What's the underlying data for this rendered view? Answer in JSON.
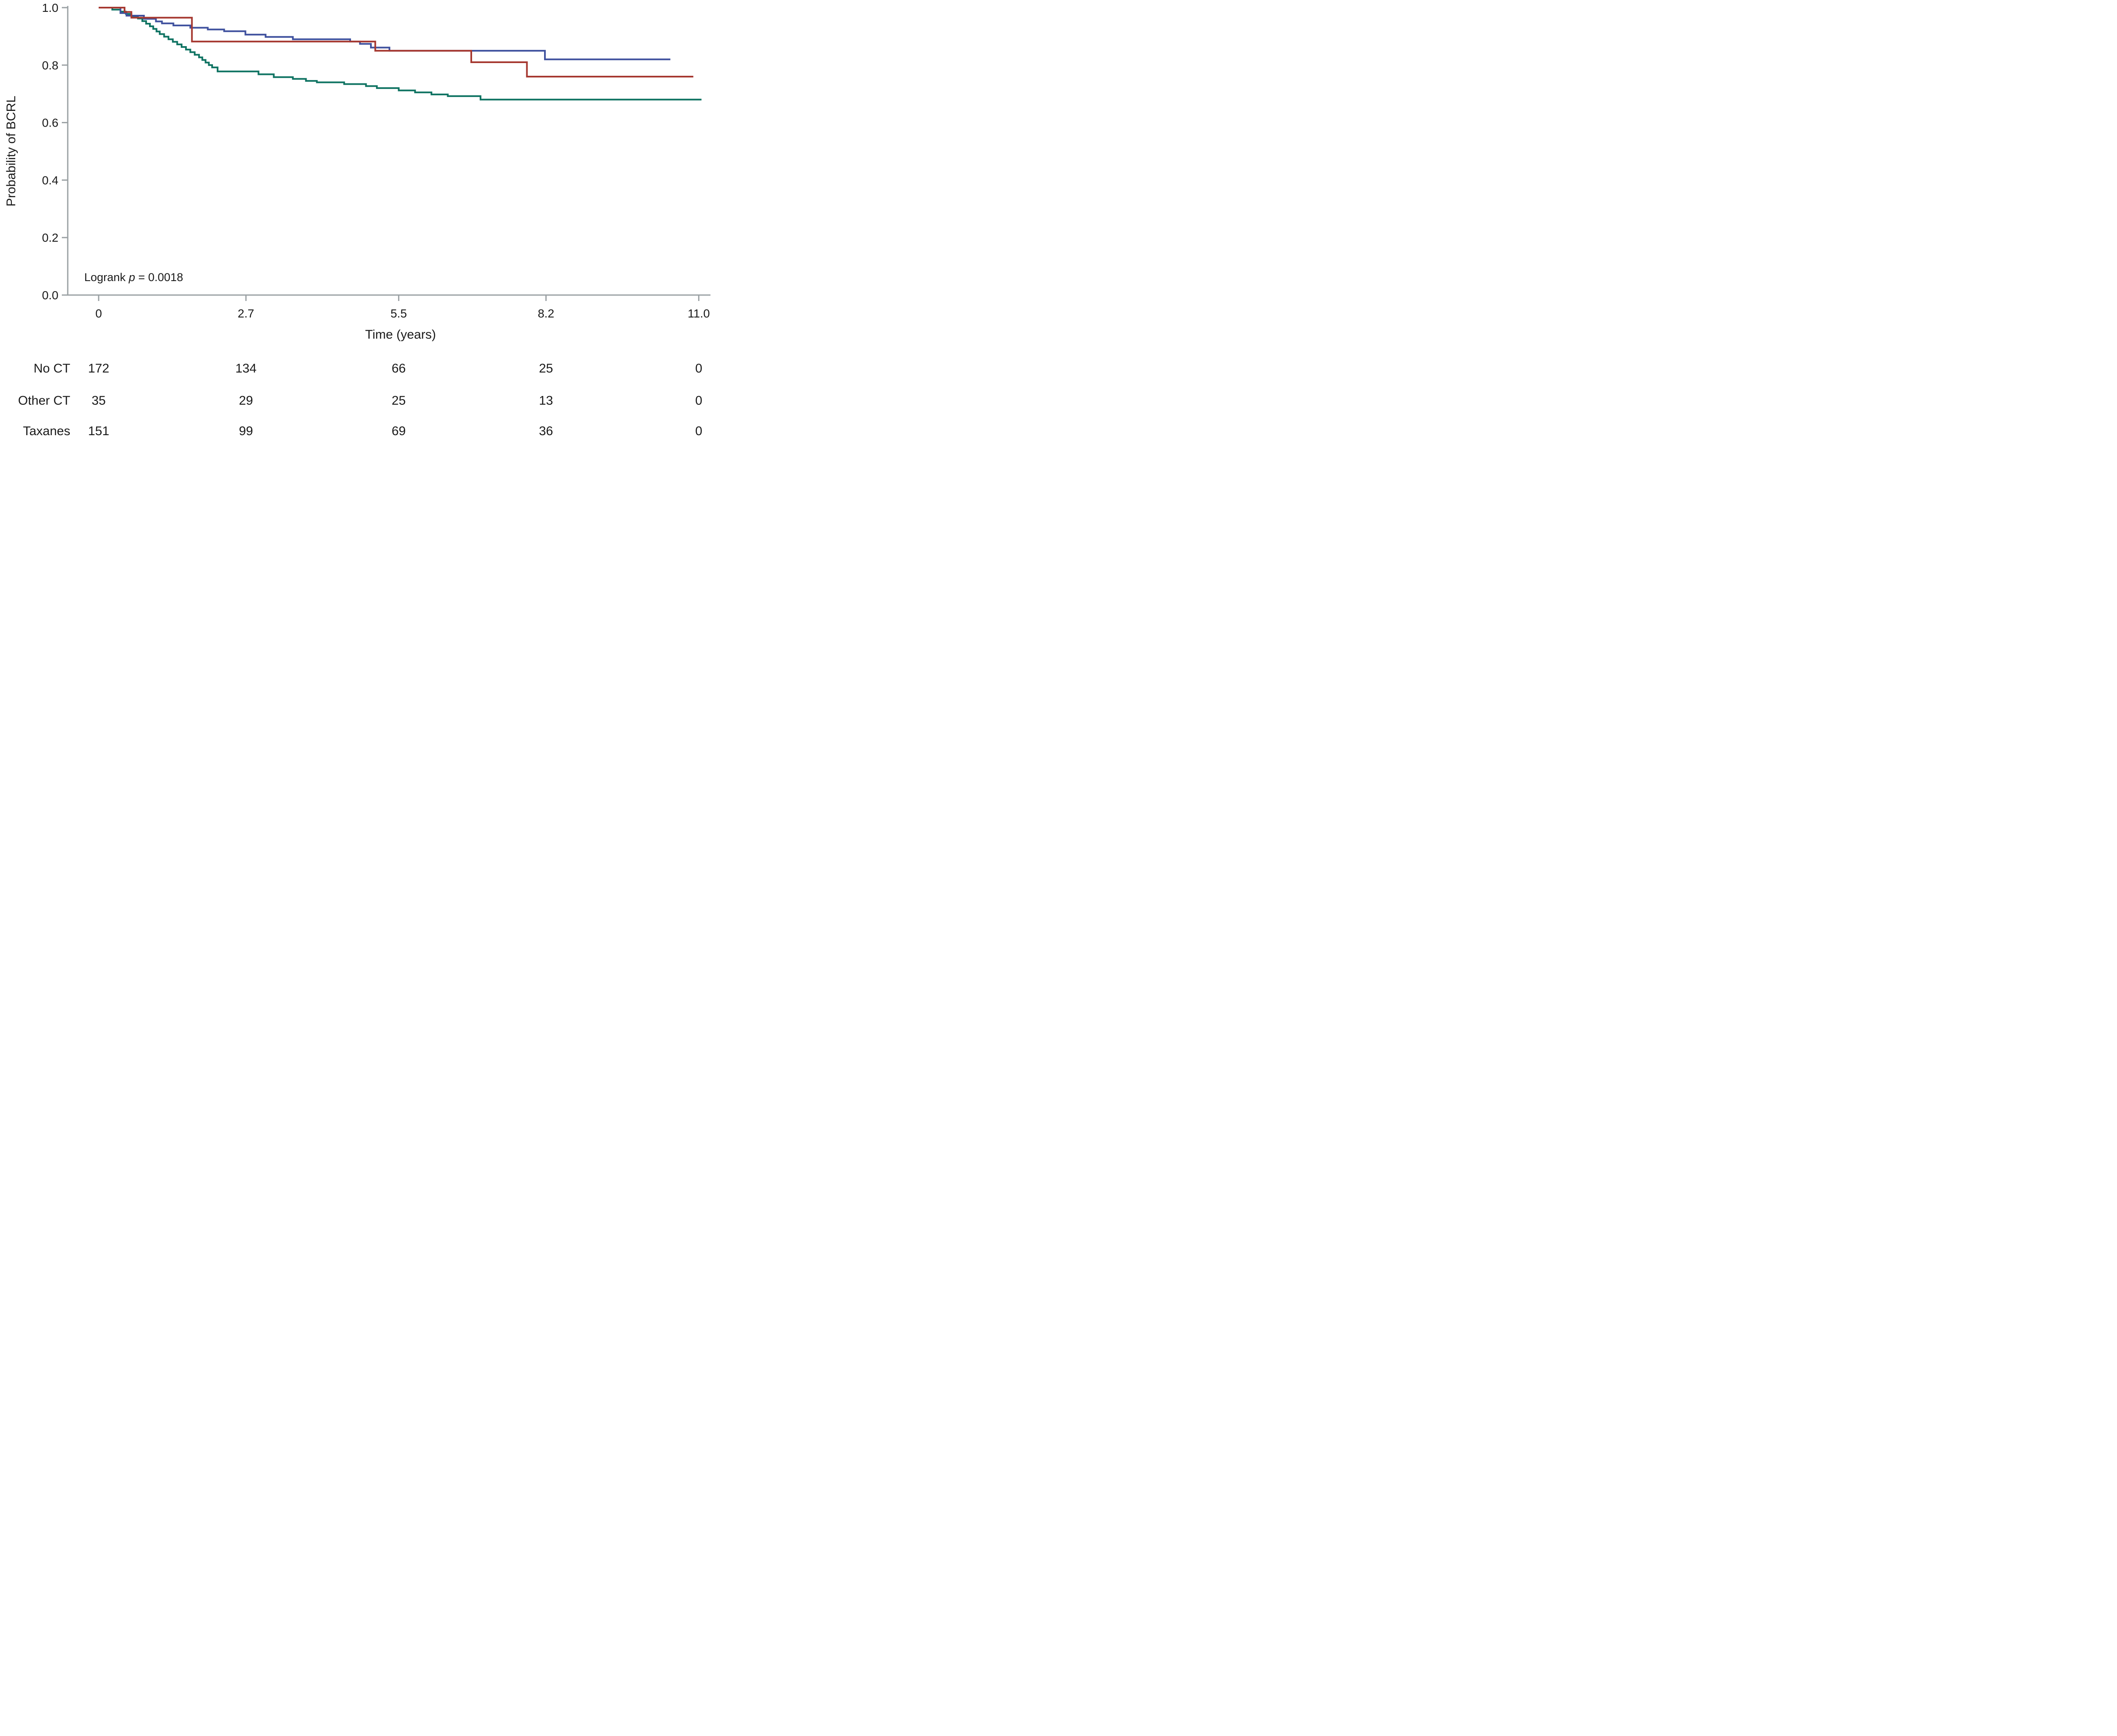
{
  "figure": {
    "ylabel": "Probability of BCRL",
    "xlabel": "Time (years)",
    "annotation": {
      "prefix": "Logrank ",
      "var": "p",
      "suffix": " = 0.0018"
    }
  },
  "colors": {
    "background": "#ffffff",
    "axis": "#9aa0a3",
    "text": "#1a1a1a",
    "no_ct": "#3f519e",
    "other_ct": "#a63931",
    "taxanes": "#0f7362"
  },
  "chart_data": {
    "type": "line",
    "subtype": "kaplan-meier-step",
    "title": "",
    "xlabel": "Time (years)",
    "ylabel": "Probability of BCRL",
    "xlim": [
      0,
      11.0
    ],
    "ylim": [
      0.0,
      1.0
    ],
    "x_ticks": [
      0,
      2.7,
      5.5,
      8.2,
      11.0
    ],
    "x_tick_labels": [
      "0",
      "2.7",
      "5.5",
      "8.2",
      "11.0"
    ],
    "y_ticks": [
      0.0,
      0.2,
      0.4,
      0.6,
      0.8,
      1.0
    ],
    "y_tick_labels": [
      "0.0",
      "0.2",
      "0.4",
      "0.6",
      "0.8",
      "1.0"
    ],
    "grid": false,
    "legend_position": "none",
    "annotation": "Logrank p = 0.0018",
    "series": [
      {
        "name": "No CT",
        "color": "#3f519e",
        "end_x": 10.48,
        "steps": [
          [
            0,
            1.0
          ],
          [
            0.4,
            0.981
          ],
          [
            0.51,
            0.972
          ],
          [
            0.83,
            0.961
          ],
          [
            1.05,
            0.952
          ],
          [
            1.16,
            0.945
          ],
          [
            1.37,
            0.938
          ],
          [
            1.68,
            0.93
          ],
          [
            2.0,
            0.924
          ],
          [
            2.3,
            0.918
          ],
          [
            2.69,
            0.906
          ],
          [
            3.06,
            0.898
          ],
          [
            3.56,
            0.89
          ],
          [
            4.61,
            0.882
          ],
          [
            4.79,
            0.874
          ],
          [
            4.99,
            0.861
          ],
          [
            5.33,
            0.85
          ],
          [
            8.18,
            0.82
          ]
        ]
      },
      {
        "name": "Other CT",
        "color": "#a63931",
        "end_x": 10.9,
        "steps": [
          [
            0,
            1.0
          ],
          [
            0.475,
            0.985
          ],
          [
            0.6,
            0.965
          ],
          [
            1.71,
            0.882
          ],
          [
            5.07,
            0.85
          ],
          [
            6.83,
            0.81
          ],
          [
            7.85,
            0.76
          ]
        ]
      },
      {
        "name": "Taxanes",
        "color": "#0f7362",
        "end_x": 11.05,
        "steps": [
          [
            0,
            1.0
          ],
          [
            0.25,
            0.993
          ],
          [
            0.4,
            0.986
          ],
          [
            0.5,
            0.978
          ],
          [
            0.6,
            0.97
          ],
          [
            0.72,
            0.962
          ],
          [
            0.8,
            0.953
          ],
          [
            0.87,
            0.944
          ],
          [
            0.94,
            0.935
          ],
          [
            1.0,
            0.926
          ],
          [
            1.06,
            0.917
          ],
          [
            1.12,
            0.908
          ],
          [
            1.2,
            0.899
          ],
          [
            1.28,
            0.89
          ],
          [
            1.36,
            0.881
          ],
          [
            1.44,
            0.872
          ],
          [
            1.52,
            0.863
          ],
          [
            1.6,
            0.854
          ],
          [
            1.68,
            0.845
          ],
          [
            1.76,
            0.836
          ],
          [
            1.84,
            0.827
          ],
          [
            1.9,
            0.818
          ],
          [
            1.96,
            0.809
          ],
          [
            2.02,
            0.8
          ],
          [
            2.08,
            0.792
          ],
          [
            2.18,
            0.778
          ],
          [
            2.93,
            0.768
          ],
          [
            3.21,
            0.758
          ],
          [
            3.56,
            0.752
          ],
          [
            3.8,
            0.745
          ],
          [
            4.0,
            0.74
          ],
          [
            4.5,
            0.734
          ],
          [
            4.9,
            0.727
          ],
          [
            5.1,
            0.72
          ],
          [
            5.5,
            0.712
          ],
          [
            5.8,
            0.705
          ],
          [
            6.1,
            0.698
          ],
          [
            6.4,
            0.692
          ],
          [
            7.0,
            0.68
          ]
        ]
      }
    ]
  },
  "risk_table": {
    "time_points": [
      "0",
      "2.7",
      "5.5",
      "8.2",
      "11.0"
    ],
    "rows": [
      {
        "label": "No CT",
        "color": "#3f519e",
        "counts": [
          "172",
          "134",
          "66",
          "25",
          "0"
        ]
      },
      {
        "label": "Other CT",
        "color": "#a63931",
        "counts": [
          "35",
          "29",
          "25",
          "13",
          "0"
        ]
      },
      {
        "label": "Taxanes",
        "color": "#0f7362",
        "counts": [
          "151",
          "99",
          "69",
          "36",
          "0"
        ]
      }
    ]
  }
}
